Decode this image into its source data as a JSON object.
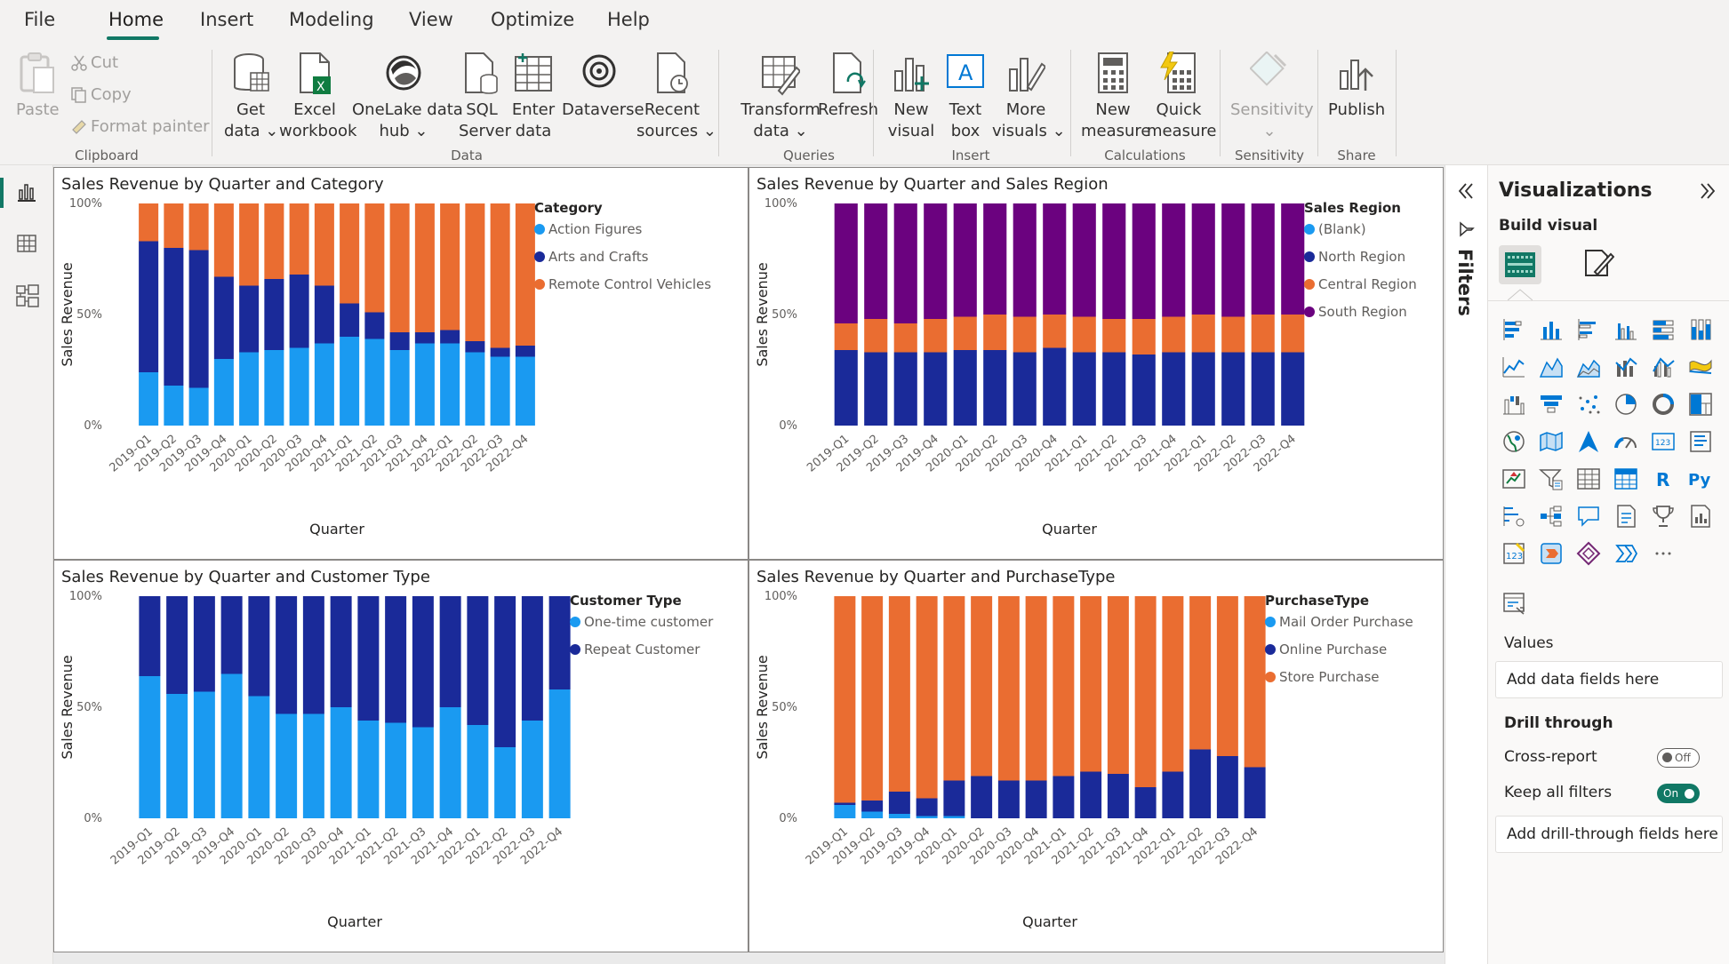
{
  "menu": {
    "items": [
      "File",
      "Home",
      "Insert",
      "Modeling",
      "View",
      "Optimize",
      "Help"
    ],
    "active": "Home"
  },
  "ribbon": {
    "clipboard": {
      "paste": "Paste",
      "cut": "Cut",
      "copy": "Copy",
      "format_painter": "Format painter",
      "group": "Clipboard"
    },
    "data": {
      "get_data": [
        "Get",
        "data ⌄"
      ],
      "excel": [
        "Excel",
        "workbook"
      ],
      "onelake": [
        "OneLake data",
        "hub ⌄"
      ],
      "sql": [
        "SQL",
        "Server"
      ],
      "enter": [
        "Enter",
        "data"
      ],
      "dataverse": [
        "Dataverse"
      ],
      "recent": [
        "Recent",
        "sources ⌄"
      ],
      "group": "Data"
    },
    "queries": {
      "transform": [
        "Transform",
        "data ⌄"
      ],
      "refresh": [
        "Refresh"
      ],
      "group": "Queries"
    },
    "insert": {
      "new_visual": [
        "New",
        "visual"
      ],
      "text_box": [
        "Text",
        "box"
      ],
      "more_visuals": [
        "More",
        "visuals ⌄"
      ],
      "group": "Insert"
    },
    "calculations": {
      "new_measure": [
        "New",
        "measure"
      ],
      "quick_measure": [
        "Quick",
        "measure"
      ],
      "group": "Calculations"
    },
    "sensitivity": {
      "label": [
        "Sensitivity",
        "⌄"
      ],
      "group": "Sensitivity"
    },
    "share": {
      "publish": [
        "Publish"
      ],
      "group": "Share"
    }
  },
  "charts": [
    {
      "title": "Sales Revenue by Quarter and Category",
      "ylabel": "Sales Revenue",
      "xlabel": "Quarter",
      "yticks": [
        "100%",
        "50%",
        "0%"
      ],
      "legend_title": "Category",
      "categories": [
        "2019-Q1",
        "2019-Q2",
        "2019-Q3",
        "2019-Q4",
        "2020-Q1",
        "2020-Q2",
        "2020-Q3",
        "2020-Q4",
        "2021-Q1",
        "2021-Q2",
        "2021-Q3",
        "2021-Q4",
        "2022-Q1",
        "2022-Q2",
        "2022-Q3",
        "2022-Q4"
      ],
      "series": [
        {
          "name": "Action Figures",
          "color": "#1a9af1",
          "values": [
            24,
            18,
            17,
            30,
            33,
            34,
            35,
            37,
            40,
            39,
            34,
            37,
            37,
            33,
            31,
            31
          ]
        },
        {
          "name": "Arts and Crafts",
          "color": "#1a2a99",
          "values": [
            59,
            62,
            62,
            37,
            30,
            32,
            33,
            26,
            15,
            12,
            8,
            5,
            6,
            5,
            4,
            5
          ]
        },
        {
          "name": "Remote Control Vehicles",
          "color": "#ea6d31",
          "values": [
            17,
            20,
            21,
            33,
            37,
            34,
            32,
            37,
            45,
            49,
            58,
            58,
            57,
            62,
            65,
            64
          ]
        }
      ]
    },
    {
      "title": "Sales Revenue by Quarter and Sales Region",
      "ylabel": "Sales Revenue",
      "xlabel": "Quarter",
      "yticks": [
        "100%",
        "50%",
        "0%"
      ],
      "legend_title": "Sales Region",
      "categories": [
        "2019-Q1",
        "2019-Q2",
        "2019-Q3",
        "2019-Q4",
        "2020-Q1",
        "2020-Q2",
        "2020-Q3",
        "2020-Q4",
        "2021-Q1",
        "2021-Q2",
        "2021-Q3",
        "2021-Q4",
        "2022-Q1",
        "2022-Q2",
        "2022-Q3",
        "2022-Q4"
      ],
      "series": [
        {
          "name": "(Blank)",
          "color": "#1a9af1",
          "values": [
            0,
            0,
            0,
            0,
            0,
            0,
            0,
            0,
            0,
            0,
            0,
            0,
            0,
            0,
            0,
            0
          ]
        },
        {
          "name": "North Region",
          "color": "#1a2a99",
          "values": [
            34,
            33,
            33,
            33,
            34,
            34,
            33,
            35,
            33,
            33,
            32,
            33,
            33,
            33,
            33,
            33
          ]
        },
        {
          "name": "Central Region",
          "color": "#ea6d31",
          "values": [
            12,
            15,
            13,
            15,
            15,
            16,
            16,
            15,
            16,
            15,
            16,
            16,
            17,
            16,
            17,
            17
          ]
        },
        {
          "name": "South Region",
          "color": "#6b027f",
          "values": [
            54,
            52,
            54,
            52,
            51,
            50,
            51,
            50,
            51,
            52,
            52,
            51,
            50,
            51,
            50,
            50
          ]
        }
      ]
    },
    {
      "title": "Sales Revenue by Quarter and Customer Type",
      "ylabel": "Sales Revenue",
      "xlabel": "Quarter",
      "yticks": [
        "100%",
        "50%",
        "0%"
      ],
      "legend_title": "Customer Type",
      "categories": [
        "2019-Q1",
        "2019-Q2",
        "2019-Q3",
        "2019-Q4",
        "2020-Q1",
        "2020-Q2",
        "2020-Q3",
        "2020-Q4",
        "2021-Q1",
        "2021-Q2",
        "2021-Q3",
        "2021-Q4",
        "2022-Q1",
        "2022-Q2",
        "2022-Q3",
        "2022-Q4"
      ],
      "series": [
        {
          "name": "One-time customer",
          "color": "#1a9af1",
          "values": [
            64,
            56,
            57,
            65,
            55,
            47,
            47,
            50,
            44,
            43,
            41,
            50,
            42,
            32,
            44,
            58
          ]
        },
        {
          "name": "Repeat Customer",
          "color": "#1a2a99",
          "values": [
            36,
            44,
            43,
            35,
            45,
            53,
            53,
            50,
            56,
            57,
            59,
            50,
            58,
            68,
            56,
            42
          ]
        }
      ]
    },
    {
      "title": "Sales Revenue by Quarter and PurchaseType",
      "ylabel": "Sales Revenue",
      "xlabel": "Quarter",
      "yticks": [
        "100%",
        "50%",
        "0%"
      ],
      "legend_title": "PurchaseType",
      "categories": [
        "2019-Q1",
        "2019-Q2",
        "2019-Q3",
        "2019-Q4",
        "2020-Q1",
        "2020-Q2",
        "2020-Q3",
        "2020-Q4",
        "2021-Q1",
        "2021-Q2",
        "2021-Q3",
        "2021-Q4",
        "2022-Q1",
        "2022-Q2",
        "2022-Q3",
        "2022-Q4"
      ],
      "series": [
        {
          "name": "Mail Order Purchase",
          "color": "#1a9af1",
          "values": [
            6,
            3,
            2,
            1,
            1,
            0,
            0,
            0,
            0,
            0,
            0,
            0,
            0,
            0,
            0,
            0
          ]
        },
        {
          "name": "Online Purchase",
          "color": "#1a2a99",
          "values": [
            1,
            5,
            10,
            8,
            16,
            19,
            17,
            17,
            19,
            21,
            20,
            14,
            21,
            31,
            28,
            23
          ]
        },
        {
          "name": "Store Purchase",
          "color": "#ea6d31",
          "values": [
            93,
            92,
            88,
            91,
            83,
            81,
            83,
            83,
            81,
            79,
            80,
            86,
            79,
            69,
            72,
            77
          ]
        }
      ]
    }
  ],
  "filters": {
    "label": "Filters"
  },
  "viz": {
    "title": "Visualizations",
    "build_visual": "Build visual",
    "values_label": "Values",
    "values_well": "Add data fields here",
    "drill_label": "Drill through",
    "cross_report": "Cross-report",
    "cross_state": "Off",
    "keep_filters": "Keep all filters",
    "keep_state": "On",
    "drill_well": "Add drill-through fields here",
    "icons": [
      "stacked-bar-chart-icon",
      "stacked-column-chart-icon",
      "clustered-bar-chart-icon",
      "clustered-column-chart-icon",
      "100-stacked-bar-chart-icon",
      "100-stacked-column-chart-icon",
      "line-chart-icon",
      "area-chart-icon",
      "stacked-area-chart-icon",
      "line-and-stacked-column-icon",
      "line-and-clustered-column-icon",
      "ribbon-chart-icon",
      "waterfall-chart-icon",
      "funnel-chart-icon",
      "scatter-chart-icon",
      "pie-chart-icon",
      "donut-chart-icon",
      "treemap-icon",
      "map-icon",
      "filled-map-icon",
      "azure-map-icon",
      "gauge-icon",
      "card-icon",
      "multi-row-card-icon",
      "kpi-icon",
      "slicer-icon",
      "table-icon",
      "matrix-icon",
      "r-script-visual-icon",
      "python-visual-icon",
      "key-influencers-icon",
      "decomposition-tree-icon",
      "qa-visual-icon",
      "smart-narrative-icon",
      "metrics-icon",
      "paginated-report-icon",
      "power-apps-icon",
      "power-automate-icon",
      "power-platform-icon",
      "arcgis-icon",
      "more-visuals-icon",
      "",
      "custom-visual-icon"
    ]
  }
}
